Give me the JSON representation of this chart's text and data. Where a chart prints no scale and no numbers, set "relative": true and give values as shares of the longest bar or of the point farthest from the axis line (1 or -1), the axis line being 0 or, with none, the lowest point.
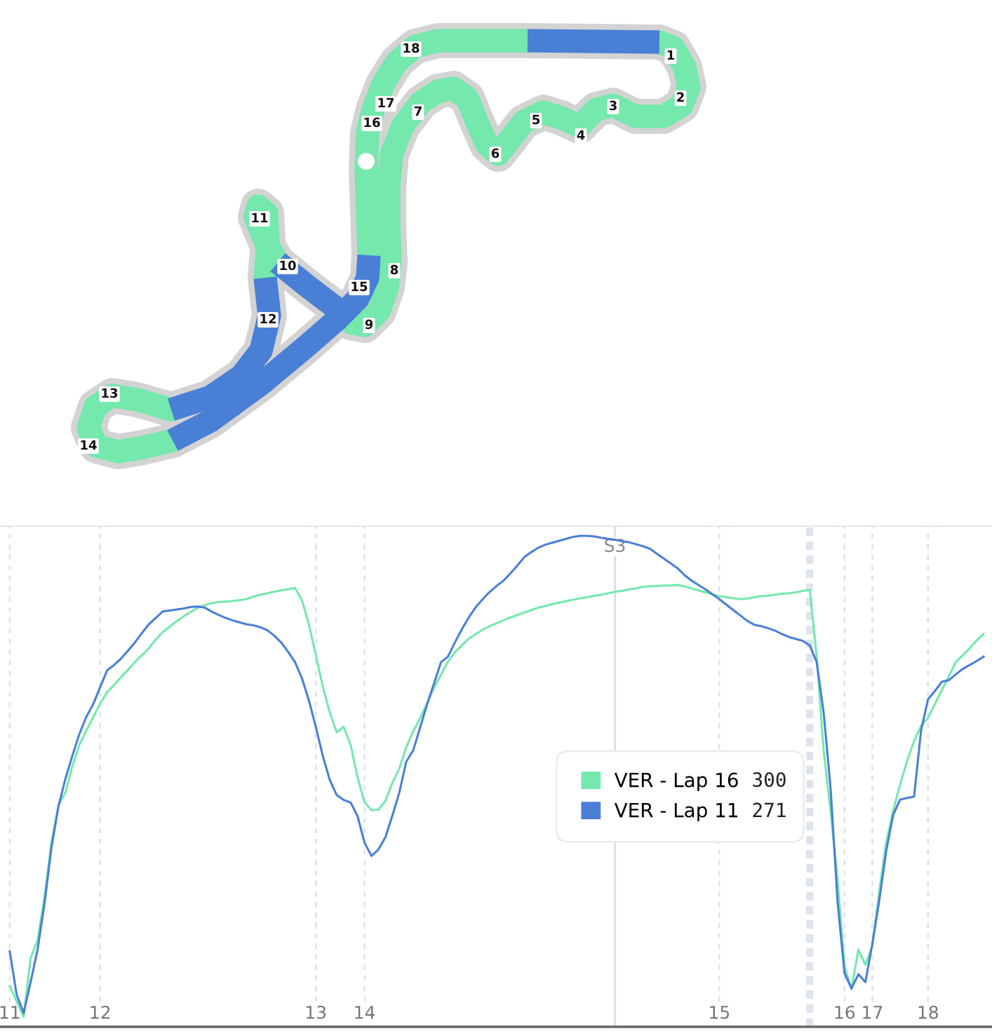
{
  "chart_data": [
    {
      "type": "other",
      "annotations": [
        "1",
        "2",
        "3",
        "4",
        "5",
        "6",
        "7",
        "8",
        "9",
        "10",
        "11",
        "12",
        "13",
        "14",
        "15",
        "16",
        "17",
        "18"
      ]
    },
    {
      "type": "line",
      "relative": true,
      "categories": [
        "11",
        null,
        null,
        null,
        null,
        null,
        null,
        null,
        null,
        null,
        null,
        null,
        null,
        "12",
        null,
        null,
        null,
        null,
        null,
        null,
        null,
        null,
        null,
        null,
        null,
        null,
        null,
        null,
        null,
        null,
        null,
        null,
        null,
        null,
        null,
        null,
        null,
        null,
        null,
        null,
        null,
        null,
        null,
        null,
        "13",
        null,
        null,
        null,
        null,
        null,
        null,
        "14",
        null,
        null,
        null,
        null,
        null,
        null,
        null,
        null,
        null,
        null,
        null,
        null,
        null,
        null,
        null,
        null,
        null,
        null,
        null,
        null,
        null,
        null,
        null,
        null,
        null,
        null,
        null,
        null,
        null,
        null,
        null,
        null,
        null,
        null,
        null,
        null,
        null,
        null,
        null,
        null,
        null,
        null,
        null,
        null,
        null,
        null,
        null,
        null,
        null,
        null,
        "15",
        null,
        null,
        null,
        null,
        null,
        null,
        null,
        null,
        null,
        null,
        null,
        null,
        null,
        null,
        null,
        null,
        null,
        "16",
        null,
        null,
        null,
        "17",
        null,
        null,
        null,
        null,
        null,
        null,
        null,
        "18",
        null,
        null,
        null,
        null,
        null,
        null,
        null,
        null
      ],
      "series": [
        {
          "name": "VER - Lap 16",
          "color": "#74e8ad",
          "values": [
            0.083,
            0.052,
            0.02,
            0.14,
            0.176,
            0.265,
            0.377,
            0.451,
            0.477,
            0.531,
            0.574,
            0.603,
            0.631,
            0.658,
            0.682,
            0.696,
            0.712,
            0.727,
            0.743,
            0.757,
            0.771,
            0.789,
            0.804,
            0.815,
            0.826,
            0.836,
            0.845,
            0.853,
            0.859,
            0.863,
            0.865,
            0.866,
            0.867,
            0.869,
            0.871,
            0.876,
            0.88,
            0.883,
            0.886,
            0.889,
            0.891,
            0.894,
            0.869,
            0.82,
            0.757,
            0.693,
            0.64,
            0.6,
            0.611,
            0.574,
            0.508,
            0.457,
            0.441,
            0.442,
            0.46,
            0.497,
            0.526,
            0.569,
            0.602,
            0.629,
            0.659,
            0.691,
            0.717,
            0.744,
            0.763,
            0.777,
            0.791,
            0.8,
            0.809,
            0.816,
            0.822,
            0.828,
            0.834,
            0.839,
            0.844,
            0.849,
            0.854,
            0.857,
            0.861,
            0.864,
            0.867,
            0.87,
            0.873,
            0.875,
            0.878,
            0.88,
            0.883,
            0.886,
            0.888,
            0.891,
            0.893,
            0.896,
            0.897,
            0.898,
            0.899,
            0.899,
            0.9,
            0.897,
            0.893,
            0.889,
            0.885,
            0.881,
            0.877,
            0.875,
            0.873,
            0.871,
            0.872,
            0.875,
            0.877,
            0.878,
            0.88,
            0.882,
            0.883,
            0.885,
            0.888,
            0.89,
            0.754,
            0.563,
            0.439,
            0.3,
            0.123,
            0.077,
            0.157,
            0.126,
            0.165,
            0.277,
            0.377,
            0.441,
            0.494,
            0.542,
            0.582,
            0.613,
            0.629,
            0.658,
            0.686,
            0.714,
            0.743,
            0.757,
            0.771,
            0.787,
            0.8
          ]
        },
        {
          "name": "VER - Lap 11",
          "color": "#4a7fd6",
          "values": [
            0.154,
            0.065,
            0.028,
            0.091,
            0.157,
            0.251,
            0.365,
            0.449,
            0.505,
            0.552,
            0.596,
            0.631,
            0.657,
            0.692,
            0.726,
            0.737,
            0.75,
            0.766,
            0.783,
            0.802,
            0.82,
            0.833,
            0.846,
            0.848,
            0.85,
            0.852,
            0.855,
            0.856,
            0.854,
            0.846,
            0.839,
            0.833,
            0.828,
            0.824,
            0.82,
            0.818,
            0.814,
            0.808,
            0.797,
            0.783,
            0.764,
            0.743,
            0.71,
            0.665,
            0.611,
            0.552,
            0.503,
            0.472,
            0.462,
            0.457,
            0.429,
            0.375,
            0.348,
            0.361,
            0.386,
            0.43,
            0.477,
            0.54,
            0.563,
            0.61,
            0.657,
            0.7,
            0.743,
            0.754,
            0.783,
            0.81,
            0.834,
            0.855,
            0.871,
            0.886,
            0.898,
            0.909,
            0.924,
            0.94,
            0.957,
            0.967,
            0.976,
            0.982,
            0.986,
            0.99,
            0.994,
            0.998,
            1.0,
            1.0,
            0.999,
            0.996,
            0.994,
            0.992,
            0.989,
            0.987,
            0.983,
            0.979,
            0.974,
            0.964,
            0.954,
            0.944,
            0.934,
            0.92,
            0.909,
            0.9,
            0.891,
            0.881,
            0.871,
            0.86,
            0.849,
            0.838,
            0.827,
            0.819,
            0.816,
            0.812,
            0.807,
            0.8,
            0.794,
            0.79,
            0.786,
            0.777,
            0.743,
            0.64,
            0.486,
            0.255,
            0.109,
            0.078,
            0.107,
            0.091,
            0.169,
            0.258,
            0.359,
            0.432,
            0.463,
            0.466,
            0.469,
            0.603,
            0.667,
            0.684,
            0.703,
            0.706,
            0.718,
            0.729,
            0.737,
            0.745,
            0.754
          ]
        }
      ],
      "grid": "x",
      "legend": "right",
      "annotations": [
        "S3",
        "300",
        "271"
      ]
    }
  ]
}
